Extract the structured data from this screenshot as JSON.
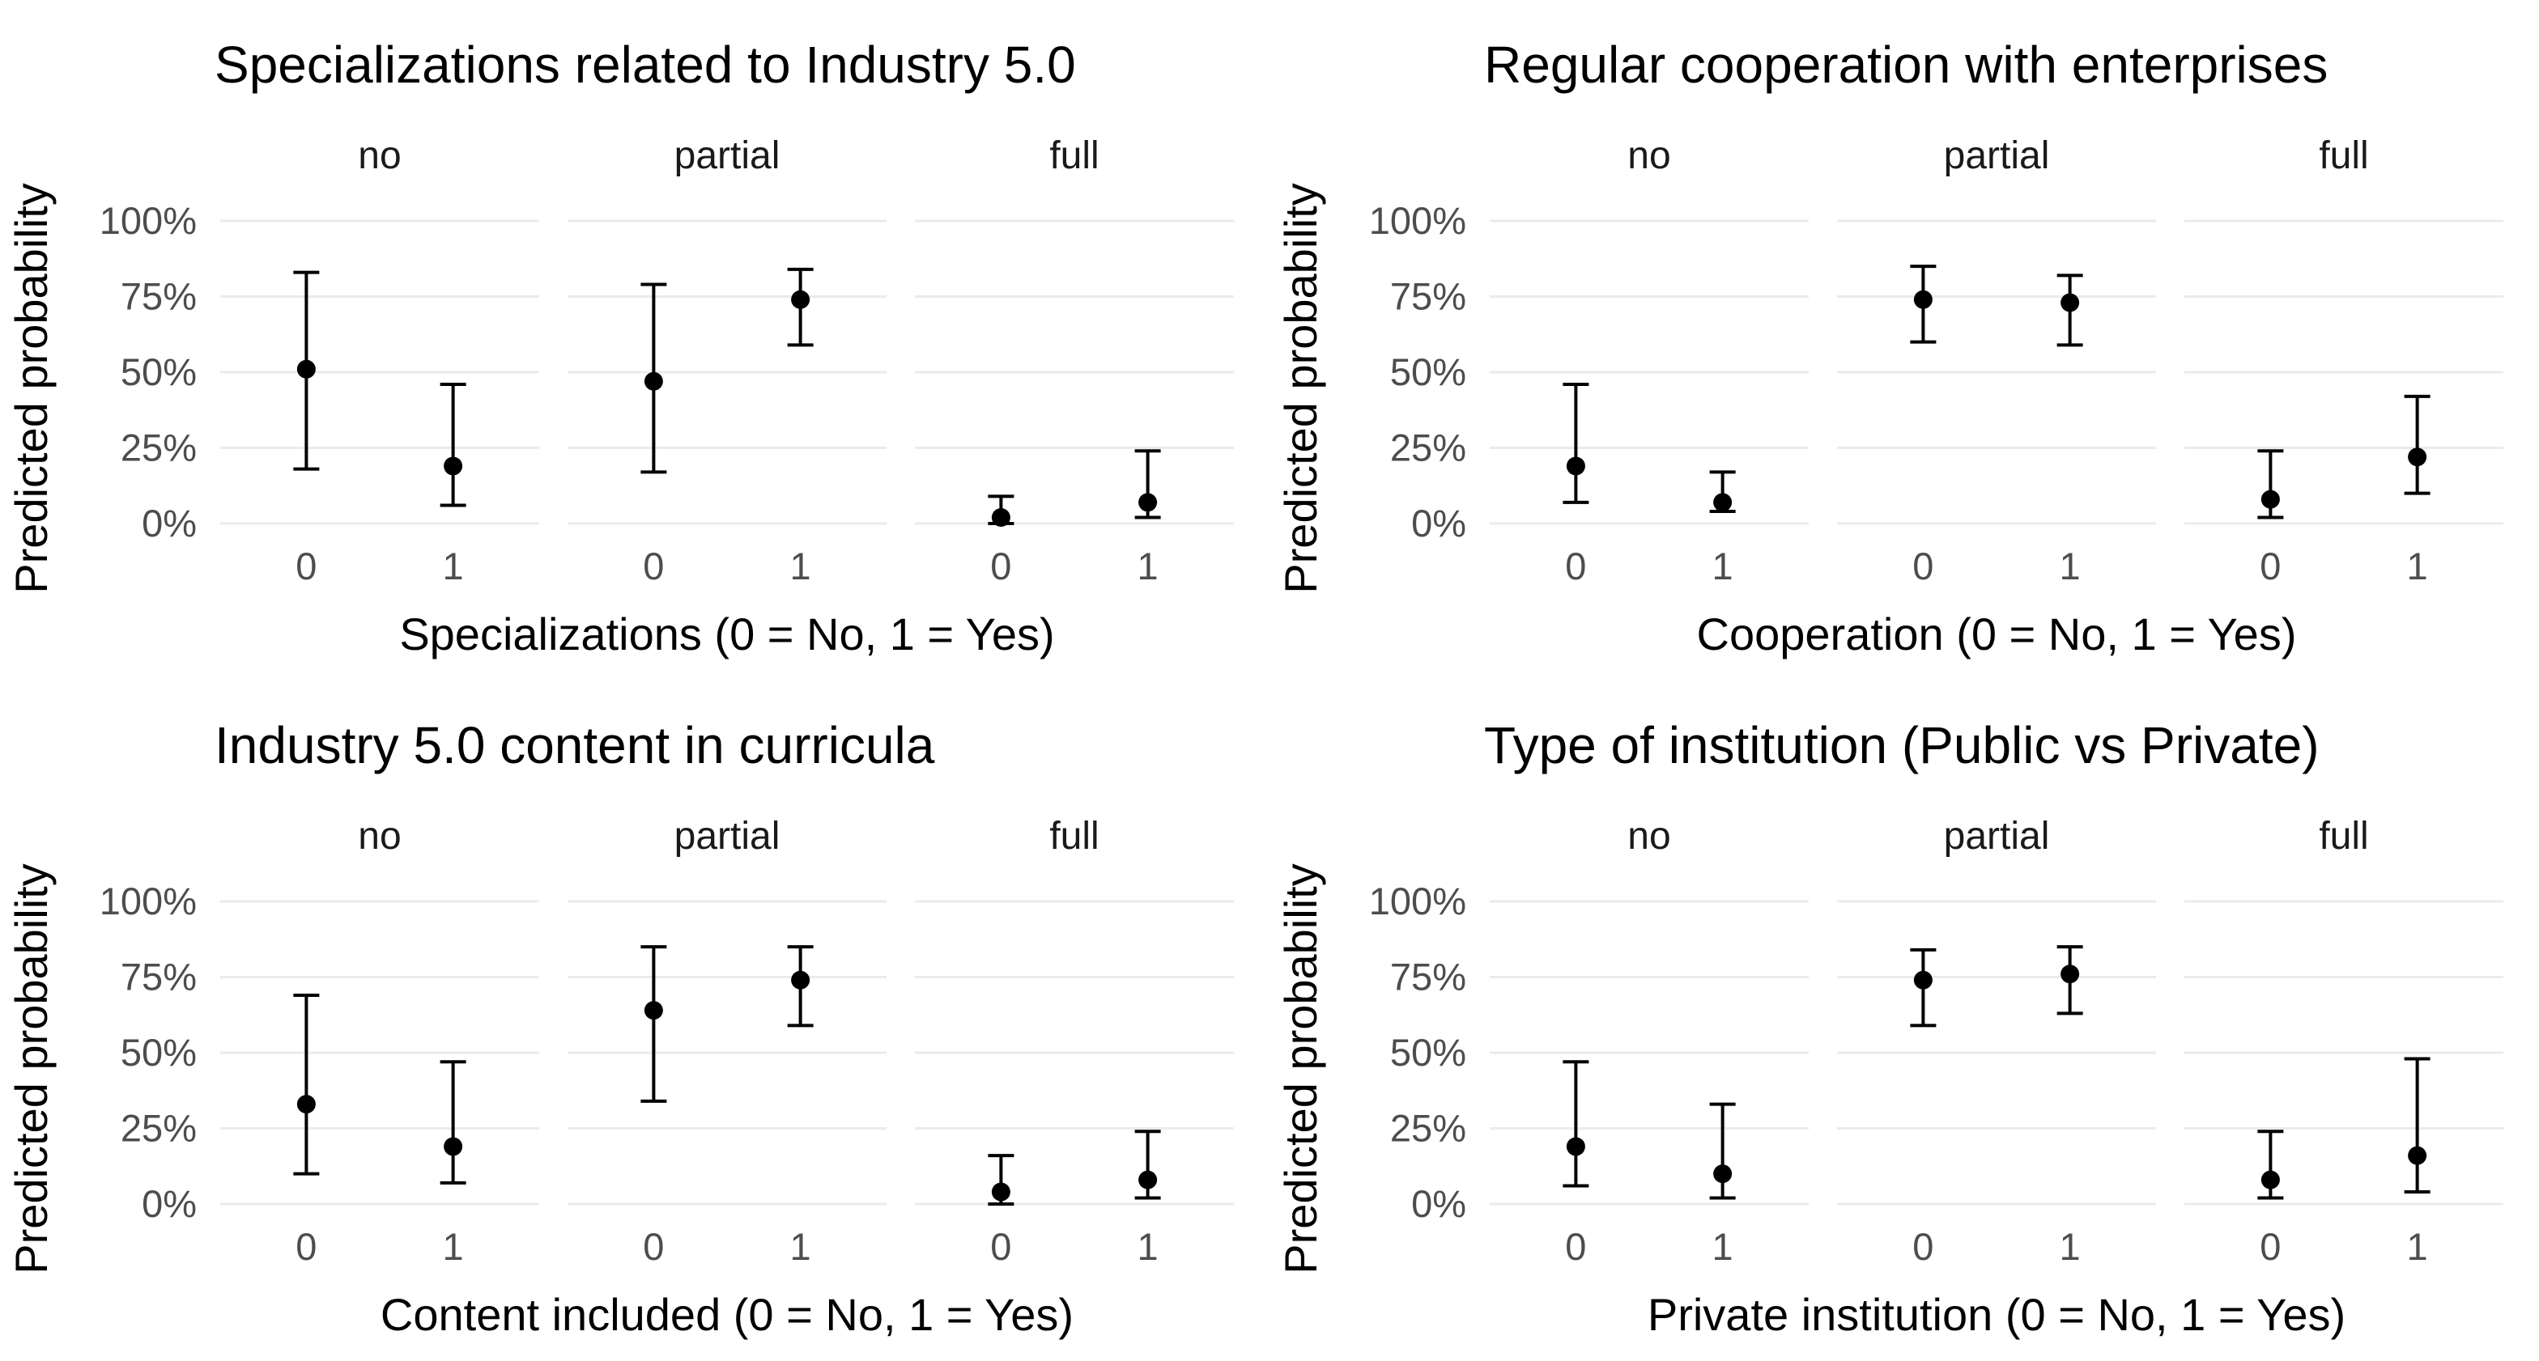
{
  "page": {
    "background": "#ffffff"
  },
  "styles": {
    "title_color": "#000000",
    "axis_title_color": "#000000",
    "strip_label_color": "#1a1a1a",
    "tick_label_color": "#4d4d4d",
    "grid_color": "#ebebeb",
    "point_color": "#000000"
  },
  "chart_data": [
    {
      "type": "scatter",
      "title": "Specializations related to Industry 5.0",
      "xlabel": "Specializations (0 = No, 1 = Yes)",
      "ylabel": "Predicted probability",
      "facets": [
        "no",
        "partial",
        "full"
      ],
      "x_categories": [
        "0",
        "1"
      ],
      "y_tick_labels": [
        "0%",
        "25%",
        "50%",
        "75%",
        "100%"
      ],
      "y_ticks": [
        0,
        25,
        50,
        75,
        100
      ],
      "ylim": [
        0,
        100
      ],
      "grid": "horizontal-major-only",
      "legend": "none",
      "marker": "point-with-error-bar",
      "series": [
        {
          "facet": "no",
          "points": [
            {
              "x": "0",
              "y": 51,
              "lo": 18,
              "hi": 83
            },
            {
              "x": "1",
              "y": 19,
              "lo": 6,
              "hi": 46
            }
          ]
        },
        {
          "facet": "partial",
          "points": [
            {
              "x": "0",
              "y": 47,
              "lo": 17,
              "hi": 79
            },
            {
              "x": "1",
              "y": 74,
              "lo": 59,
              "hi": 84
            }
          ]
        },
        {
          "facet": "full",
          "points": [
            {
              "x": "0",
              "y": 2,
              "lo": 0,
              "hi": 9
            },
            {
              "x": "1",
              "y": 7,
              "lo": 2,
              "hi": 24
            }
          ]
        }
      ]
    },
    {
      "type": "scatter",
      "title": "Regular cooperation with enterprises",
      "xlabel": "Cooperation (0 = No, 1 = Yes)",
      "ylabel": "Predicted probability",
      "facets": [
        "no",
        "partial",
        "full"
      ],
      "x_categories": [
        "0",
        "1"
      ],
      "y_tick_labels": [
        "0%",
        "25%",
        "50%",
        "75%",
        "100%"
      ],
      "y_ticks": [
        0,
        25,
        50,
        75,
        100
      ],
      "ylim": [
        0,
        100
      ],
      "grid": "horizontal-major-only",
      "legend": "none",
      "marker": "point-with-error-bar",
      "series": [
        {
          "facet": "no",
          "points": [
            {
              "x": "0",
              "y": 19,
              "lo": 7,
              "hi": 46
            },
            {
              "x": "1",
              "y": 7,
              "lo": 4,
              "hi": 17
            }
          ]
        },
        {
          "facet": "partial",
          "points": [
            {
              "x": "0",
              "y": 74,
              "lo": 60,
              "hi": 85
            },
            {
              "x": "1",
              "y": 73,
              "lo": 59,
              "hi": 82
            }
          ]
        },
        {
          "facet": "full",
          "points": [
            {
              "x": "0",
              "y": 8,
              "lo": 2,
              "hi": 24
            },
            {
              "x": "1",
              "y": 22,
              "lo": 10,
              "hi": 42
            }
          ]
        }
      ]
    },
    {
      "type": "scatter",
      "title": "Industry 5.0 content in curricula",
      "xlabel": "Content included (0 = No, 1 = Yes)",
      "ylabel": "Predicted probability",
      "facets": [
        "no",
        "partial",
        "full"
      ],
      "x_categories": [
        "0",
        "1"
      ],
      "y_tick_labels": [
        "0%",
        "25%",
        "50%",
        "75%",
        "100%"
      ],
      "y_ticks": [
        0,
        25,
        50,
        75,
        100
      ],
      "ylim": [
        0,
        100
      ],
      "grid": "horizontal-major-only",
      "legend": "none",
      "marker": "point-with-error-bar",
      "series": [
        {
          "facet": "no",
          "points": [
            {
              "x": "0",
              "y": 33,
              "lo": 10,
              "hi": 69
            },
            {
              "x": "1",
              "y": 19,
              "lo": 7,
              "hi": 47
            }
          ]
        },
        {
          "facet": "partial",
          "points": [
            {
              "x": "0",
              "y": 64,
              "lo": 34,
              "hi": 85
            },
            {
              "x": "1",
              "y": 74,
              "lo": 59,
              "hi": 85
            }
          ]
        },
        {
          "facet": "full",
          "points": [
            {
              "x": "0",
              "y": 4,
              "lo": 0,
              "hi": 16
            },
            {
              "x": "1",
              "y": 8,
              "lo": 2,
              "hi": 24
            }
          ]
        }
      ]
    },
    {
      "type": "scatter",
      "title": "Type of institution (Public vs Private)",
      "xlabel": "Private institution (0 = No, 1 = Yes)",
      "ylabel": "Predicted probability",
      "facets": [
        "no",
        "partial",
        "full"
      ],
      "x_categories": [
        "0",
        "1"
      ],
      "y_tick_labels": [
        "0%",
        "25%",
        "50%",
        "75%",
        "100%"
      ],
      "y_ticks": [
        0,
        25,
        50,
        75,
        100
      ],
      "ylim": [
        0,
        100
      ],
      "grid": "horizontal-major-only",
      "legend": "none",
      "marker": "point-with-error-bar",
      "series": [
        {
          "facet": "no",
          "points": [
            {
              "x": "0",
              "y": 19,
              "lo": 6,
              "hi": 47
            },
            {
              "x": "1",
              "y": 10,
              "lo": 2,
              "hi": 33
            }
          ]
        },
        {
          "facet": "partial",
          "points": [
            {
              "x": "0",
              "y": 74,
              "lo": 59,
              "hi": 84
            },
            {
              "x": "1",
              "y": 76,
              "lo": 63,
              "hi": 85
            }
          ]
        },
        {
          "facet": "full",
          "points": [
            {
              "x": "0",
              "y": 8,
              "lo": 2,
              "hi": 24
            },
            {
              "x": "1",
              "y": 16,
              "lo": 4,
              "hi": 48
            }
          ]
        }
      ]
    }
  ]
}
